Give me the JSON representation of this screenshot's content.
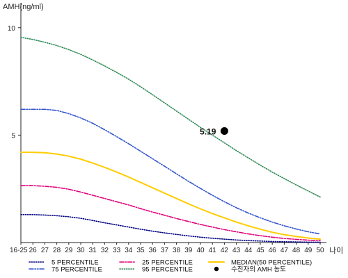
{
  "chart_data": {
    "type": "line",
    "ylabel": "AMH(ng/ml)",
    "xlabel": "나이",
    "categories": [
      "16-25",
      "26",
      "27",
      "28",
      "29",
      "30",
      "31",
      "32",
      "33",
      "34",
      "35",
      "36",
      "37",
      "38",
      "39",
      "40",
      "41",
      "42",
      "43",
      "44",
      "45",
      "46",
      "47",
      "48",
      "49",
      "50"
    ],
    "y_ticks": [
      5,
      10
    ],
    "ylim": [
      0,
      10.9
    ],
    "grid": false,
    "legend_position": "bottom",
    "series": [
      {
        "name": "5 PERCENTILE",
        "color": "#000080",
        "dash": "dotted",
        "values": [
          1.3,
          1.3,
          1.28,
          1.25,
          1.2,
          1.13,
          1.03,
          0.92,
          0.82,
          0.72,
          0.62,
          0.53,
          0.45,
          0.38,
          0.31,
          0.25,
          0.2,
          0.16,
          0.12,
          0.09,
          0.07,
          0.05,
          0.04,
          0.03,
          0.02,
          0.02
        ]
      },
      {
        "name": "25 PERCENTILE",
        "color": "#E0007A",
        "dash": "dashdot",
        "values": [
          2.65,
          2.65,
          2.62,
          2.57,
          2.48,
          2.35,
          2.2,
          2.05,
          1.9,
          1.75,
          1.58,
          1.42,
          1.27,
          1.12,
          0.98,
          0.84,
          0.72,
          0.6,
          0.5,
          0.4,
          0.32,
          0.25,
          0.19,
          0.15,
          0.11,
          0.09
        ]
      },
      {
        "name": "MEDIAN(50 PERCENTILE)",
        "color": "#FFCC00",
        "dash": "solid",
        "values": [
          4.2,
          4.2,
          4.18,
          4.12,
          4.02,
          3.88,
          3.7,
          3.5,
          3.28,
          3.05,
          2.8,
          2.55,
          2.3,
          2.05,
          1.8,
          1.57,
          1.35,
          1.15,
          0.95,
          0.78,
          0.62,
          0.48,
          0.37,
          0.28,
          0.21,
          0.16
        ]
      },
      {
        "name": "75 PERCENTILE",
        "color": "#3355CC",
        "dash": "dashdotdot",
        "values": [
          6.2,
          6.2,
          6.2,
          6.15,
          6.0,
          5.8,
          5.55,
          5.25,
          4.93,
          4.6,
          4.25,
          3.9,
          3.55,
          3.2,
          2.85,
          2.52,
          2.2,
          1.9,
          1.62,
          1.37,
          1.15,
          0.95,
          0.78,
          0.63,
          0.5,
          0.4
        ]
      },
      {
        "name": "95 PERCENTILE",
        "color": "#2E8B57",
        "dash": "dotted",
        "values": [
          9.55,
          9.45,
          9.32,
          9.17,
          8.98,
          8.76,
          8.5,
          8.22,
          7.92,
          7.6,
          7.25,
          6.88,
          6.5,
          6.12,
          5.74,
          5.36,
          5.0,
          4.64,
          4.28,
          3.94,
          3.6,
          3.28,
          2.98,
          2.68,
          2.4,
          2.12
        ]
      }
    ],
    "highlight_point": {
      "name": "수진자의 AMH 농도",
      "x": "42",
      "y": 5.19,
      "label": "5.19"
    }
  }
}
